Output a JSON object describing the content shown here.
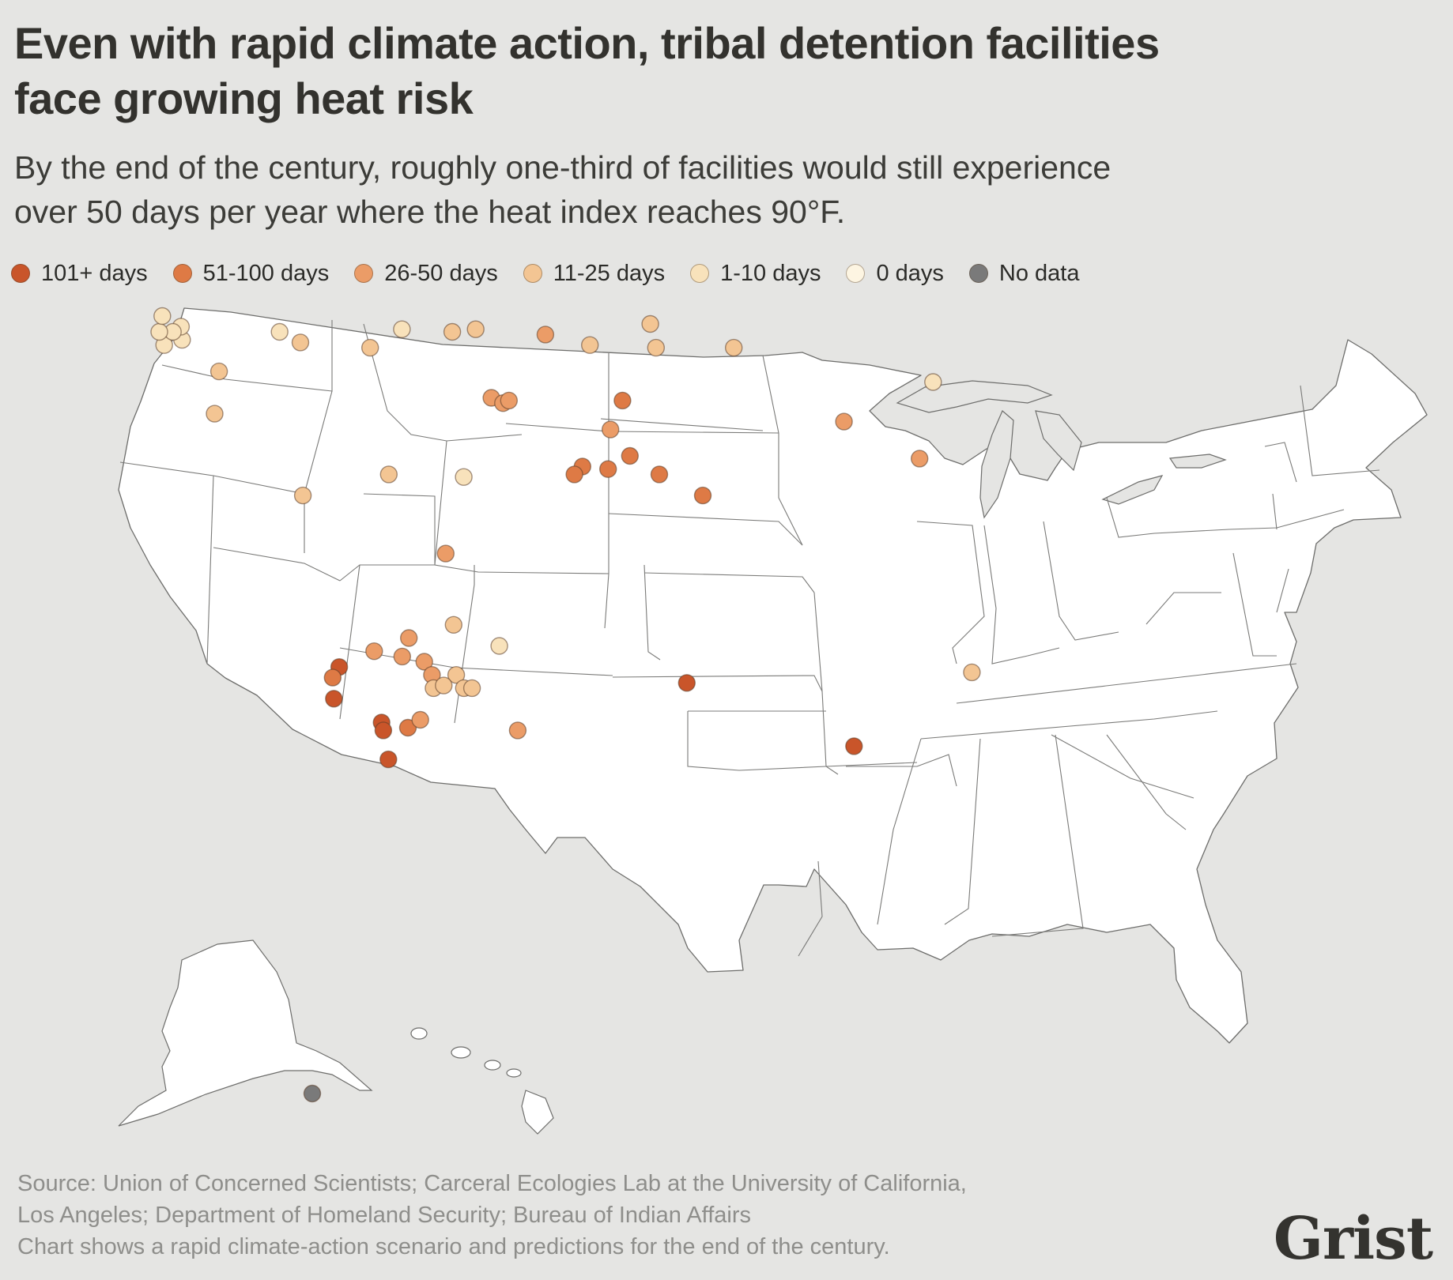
{
  "title_line1": "Even with rapid climate action, tribal detention facilities",
  "title_line2": "face growing heat risk",
  "subtitle_line1": "By the end of the century, roughly one-third of facilities would still experience",
  "subtitle_line2": "over 50 days per year where the heat index reaches 90°F.",
  "legend": [
    {
      "label": "101+ days",
      "color": "#c9552a"
    },
    {
      "label": "51-100 days",
      "color": "#de7a45"
    },
    {
      "label": "26-50 days",
      "color": "#eb9c67"
    },
    {
      "label": "11-25 days",
      "color": "#f3c593"
    },
    {
      "label": "1-10 days",
      "color": "#f8e2bb"
    },
    {
      "label": "0 days",
      "color": "#fdf5e2"
    },
    {
      "label": "No data",
      "color": "#7a7a7a"
    }
  ],
  "source_line1": "Source: Union of Concerned Scientists; Carceral Ecologies Lab at the University of California,",
  "source_line2": "Los Angeles; Department of Homeland Security; Bureau of Indian Affairs",
  "note": "Chart shows a rapid climate-action scenario and predictions for the end of the century.",
  "logo": "Grist",
  "facilities": [
    {
      "lon": -123.4,
      "lat": 48.1,
      "category": "1-10 days"
    },
    {
      "lon": -124.3,
      "lat": 47.9,
      "category": "1-10 days"
    },
    {
      "lon": -123.5,
      "lat": 48.6,
      "category": "1-10 days"
    },
    {
      "lon": -123.9,
      "lat": 48.4,
      "category": "1-10 days"
    },
    {
      "lon": -124.6,
      "lat": 48.4,
      "category": "1-10 days"
    },
    {
      "lon": -124.5,
      "lat": 49.0,
      "category": "1-10 days"
    },
    {
      "lon": -118.4,
      "lat": 48.4,
      "category": "1-10 days"
    },
    {
      "lon": -117.3,
      "lat": 48.0,
      "category": "11-25 days"
    },
    {
      "lon": -121.4,
      "lat": 46.9,
      "category": "11-25 days"
    },
    {
      "lon": -121.5,
      "lat": 45.3,
      "category": "11-25 days"
    },
    {
      "lon": -113.7,
      "lat": 47.8,
      "category": "11-25 days"
    },
    {
      "lon": -112.1,
      "lat": 48.5,
      "category": "1-10 days"
    },
    {
      "lon": -109.5,
      "lat": 48.4,
      "category": "11-25 days"
    },
    {
      "lon": -108.3,
      "lat": 48.5,
      "category": "11-25 days"
    },
    {
      "lon": -104.7,
      "lat": 48.3,
      "category": "26-50 days"
    },
    {
      "lon": -102.4,
      "lat": 47.9,
      "category": "11-25 days"
    },
    {
      "lon": -99.3,
      "lat": 48.7,
      "category": "11-25 days"
    },
    {
      "lon": -99.0,
      "lat": 47.8,
      "category": "11-25 days"
    },
    {
      "lon": -95.0,
      "lat": 47.8,
      "category": "11-25 days"
    },
    {
      "lon": -107.4,
      "lat": 45.9,
      "category": "26-50 days"
    },
    {
      "lon": -106.8,
      "lat": 45.7,
      "category": "26-50 days"
    },
    {
      "lon": -106.5,
      "lat": 45.8,
      "category": "26-50 days"
    },
    {
      "lon": -100.7,
      "lat": 45.8,
      "category": "51-100 days"
    },
    {
      "lon": -101.3,
      "lat": 44.7,
      "category": "26-50 days"
    },
    {
      "lon": -100.3,
      "lat": 43.7,
      "category": "51-100 days"
    },
    {
      "lon": -102.7,
      "lat": 43.3,
      "category": "51-100 days"
    },
    {
      "lon": -103.1,
      "lat": 43.0,
      "category": "51-100 days"
    },
    {
      "lon": -101.4,
      "lat": 43.2,
      "category": "51-100 days"
    },
    {
      "lon": -98.8,
      "lat": 43.0,
      "category": "51-100 days"
    },
    {
      "lon": -96.6,
      "lat": 42.2,
      "category": "51-100 days"
    },
    {
      "lon": -116.8,
      "lat": 42.2,
      "category": "11-25 days"
    },
    {
      "lon": -112.5,
      "lat": 43.0,
      "category": "11-25 days"
    },
    {
      "lon": -108.7,
      "lat": 42.9,
      "category": "1-10 days"
    },
    {
      "lon": -89.4,
      "lat": 45.0,
      "category": "26-50 days"
    },
    {
      "lon": -85.6,
      "lat": 43.6,
      "category": "26-50 days"
    },
    {
      "lon": -84.8,
      "lat": 46.5,
      "category": "1-10 days"
    },
    {
      "lon": -109.5,
      "lat": 40.0,
      "category": "26-50 days"
    },
    {
      "lon": -109.0,
      "lat": 37.3,
      "category": "11-25 days"
    },
    {
      "lon": -111.2,
      "lat": 36.8,
      "category": "26-50 days"
    },
    {
      "lon": -112.9,
      "lat": 36.3,
      "category": "26-50 days"
    },
    {
      "lon": -114.6,
      "lat": 35.7,
      "category": "101+ days"
    },
    {
      "lon": -111.5,
      "lat": 36.1,
      "category": "26-50 days"
    },
    {
      "lon": -110.4,
      "lat": 35.9,
      "category": "26-50 days"
    },
    {
      "lon": -110.0,
      "lat": 35.4,
      "category": "26-50 days"
    },
    {
      "lon": -108.8,
      "lat": 35.4,
      "category": "11-25 days"
    },
    {
      "lon": -109.9,
      "lat": 34.9,
      "category": "11-25 days"
    },
    {
      "lon": -109.4,
      "lat": 35.0,
      "category": "11-25 days"
    },
    {
      "lon": -108.4,
      "lat": 34.9,
      "category": "11-25 days"
    },
    {
      "lon": -108.0,
      "lat": 34.9,
      "category": "11-25 days"
    },
    {
      "lon": -106.7,
      "lat": 36.5,
      "category": "1-10 days"
    },
    {
      "lon": -114.9,
      "lat": 35.3,
      "category": "51-100 days"
    },
    {
      "lon": -114.8,
      "lat": 34.5,
      "category": "101+ days"
    },
    {
      "lon": -112.4,
      "lat": 33.6,
      "category": "101+ days"
    },
    {
      "lon": -112.3,
      "lat": 33.3,
      "category": "101+ days"
    },
    {
      "lon": -111.1,
      "lat": 33.4,
      "category": "51-100 days"
    },
    {
      "lon": -110.5,
      "lat": 33.7,
      "category": "26-50 days"
    },
    {
      "lon": -112.0,
      "lat": 32.2,
      "category": "101+ days"
    },
    {
      "lon": -105.7,
      "lat": 33.3,
      "category": "26-50 days"
    },
    {
      "lon": -97.4,
      "lat": 35.1,
      "category": "101+ days"
    },
    {
      "lon": -89.2,
      "lat": 32.7,
      "category": "101+ days"
    },
    {
      "lon": -83.3,
      "lat": 35.5,
      "category": "11-25 days"
    },
    {
      "lon": -135.3,
      "lat": 57.1,
      "category": "No data"
    }
  ]
}
